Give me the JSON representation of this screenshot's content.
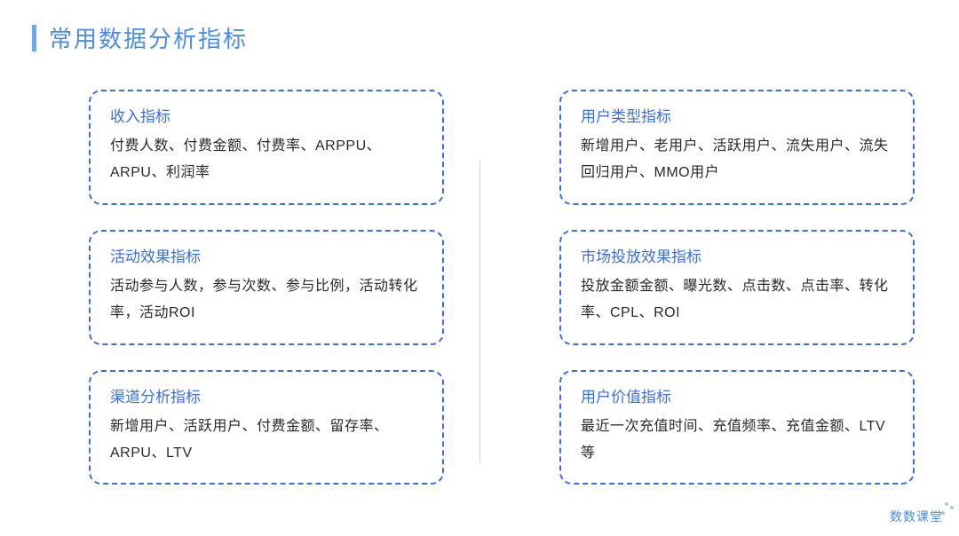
{
  "title": "常用数据分析指标",
  "left": [
    {
      "title": "收入指标",
      "body": "付费人数、付费金额、付费率、ARPPU、ARPU、利润率"
    },
    {
      "title": "活动效果指标",
      "body": "活动参与人数，参与次数、参与比例，活动转化率，活动ROI"
    },
    {
      "title": "渠道分析指标",
      "body": "新增用户、活跃用户、付费金额、留存率、ARPU、LTV"
    }
  ],
  "right": [
    {
      "title": "用户类型指标",
      "body": "新增用户、老用户、活跃用户、流失用户、流失回归用户、MMO用户"
    },
    {
      "title": "市场投放效果指标",
      "body": "投放金额金额、曝光数、点击数、点击率、转化率、CPL、ROI"
    },
    {
      "title": "用户价值指标",
      "body": "最近一次充值时间、充值频率、充值金额、LTV等"
    }
  ],
  "logo": "数数课堂"
}
